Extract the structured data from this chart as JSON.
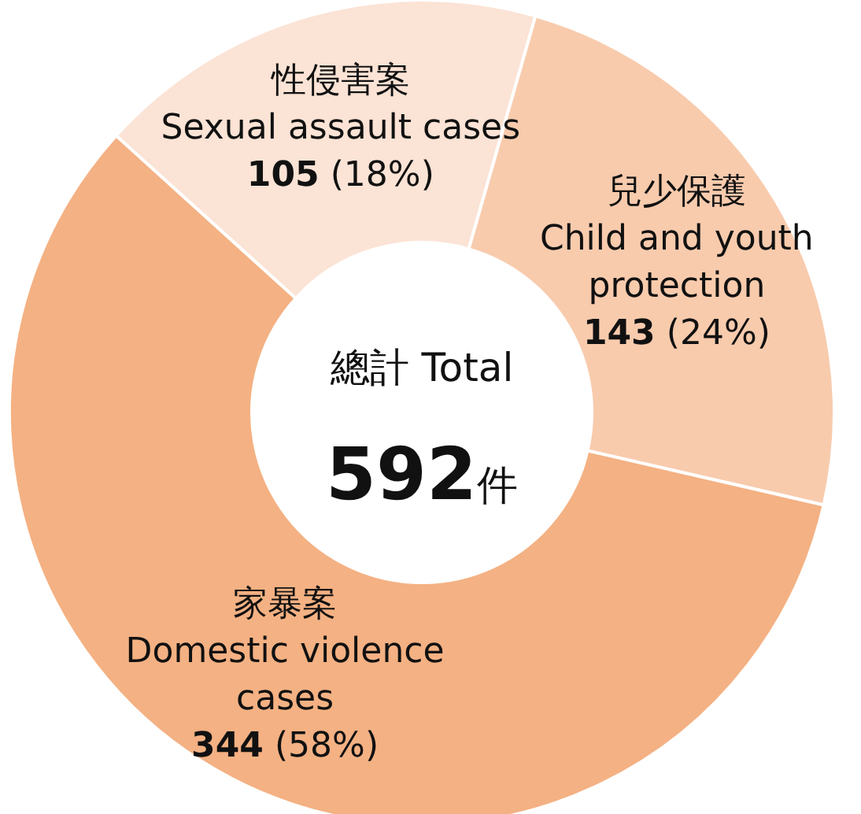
{
  "chart_data": {
    "type": "donut",
    "categories": [
      "性侵害案\nSexual assault cases",
      "兒少保護\nChild and youth\nprotection",
      "家暴案\nDomestic violence\ncases"
    ],
    "values": [
      105,
      143,
      344
    ],
    "value_labels": [
      "105 (18%)",
      "143 (24%)",
      "344 (58%)"
    ],
    "colors": [
      "#fbe3d5",
      "#f8cbad",
      "#f4b183"
    ],
    "annotations": [
      "總計 Total",
      "592件"
    ],
    "legend": false
  }
}
